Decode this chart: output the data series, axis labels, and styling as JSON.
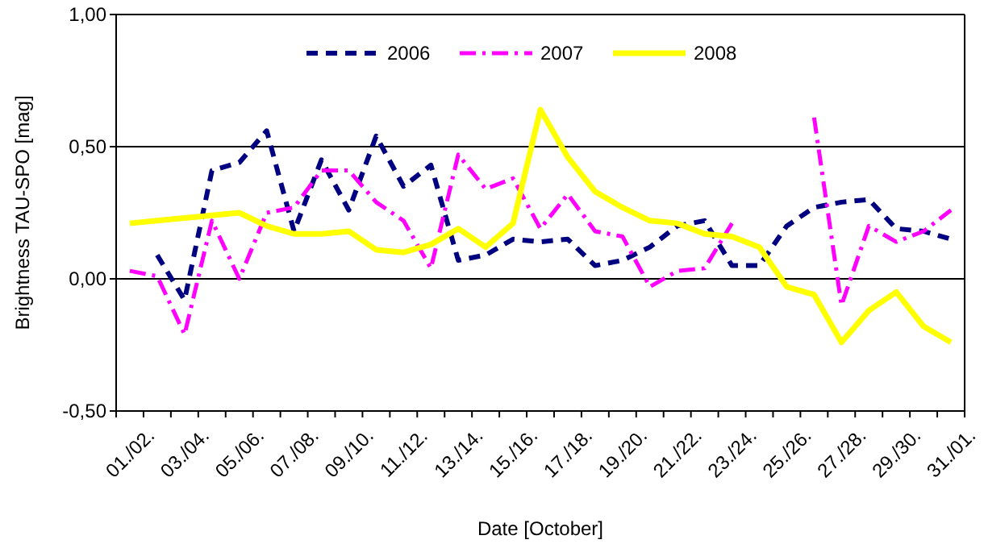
{
  "chart_data": {
    "type": "line",
    "xlabel": "Date [October]",
    "ylabel": "Brightness TAU-SPO [mag]",
    "categories": [
      "01./02.",
      null,
      "03./04.",
      null,
      "05./06.",
      null,
      "07./08.",
      null,
      "09./10.",
      null,
      "11./12.",
      null,
      "13./14.",
      null,
      "15./16.",
      null,
      "17./18.",
      null,
      "19./20.",
      null,
      "21./22.",
      null,
      "23./24.",
      null,
      "25./26.",
      null,
      "27./28.",
      null,
      "29./30.",
      null,
      "31./01."
    ],
    "series": [
      {
        "name": "2006",
        "color": "#000080",
        "line_style": "dashed",
        "values": [
          null,
          0.09,
          -0.08,
          0.41,
          0.44,
          0.56,
          0.18,
          0.45,
          0.26,
          0.54,
          0.35,
          0.43,
          0.07,
          0.09,
          0.15,
          0.14,
          0.15,
          0.05,
          0.07,
          0.12,
          0.2,
          0.22,
          0.05,
          0.05,
          0.2,
          0.27,
          0.29,
          0.3,
          0.19,
          0.18,
          0.15
        ]
      },
      {
        "name": "2007",
        "color": "#ff00ff",
        "line_style": "dashdot",
        "values": [
          0.03,
          0.01,
          -0.21,
          0.22,
          0.0,
          0.25,
          0.27,
          0.41,
          0.41,
          0.29,
          0.22,
          0.04,
          0.47,
          0.34,
          0.38,
          0.19,
          0.32,
          0.18,
          0.16,
          -0.03,
          0.03,
          0.04,
          0.21,
          null,
          null,
          0.61,
          -0.1,
          0.2,
          0.14,
          0.18,
          0.26
        ]
      },
      {
        "name": "2008",
        "color": "#ffff00",
        "line_style": "solid",
        "values": [
          0.21,
          0.22,
          0.23,
          0.24,
          0.25,
          0.2,
          0.17,
          0.17,
          0.18,
          0.11,
          0.1,
          0.13,
          0.19,
          0.12,
          0.21,
          0.64,
          0.46,
          0.33,
          0.27,
          0.22,
          0.21,
          0.17,
          0.16,
          0.12,
          -0.03,
          -0.06,
          -0.24,
          -0.12,
          -0.05,
          -0.18,
          -0.24
        ]
      }
    ],
    "ylim": [
      -0.5,
      1
    ],
    "yticks": [
      {
        "value": -0.5,
        "label": "-0,50"
      },
      {
        "value": 0,
        "label": "0,00"
      },
      {
        "value": 0.5,
        "label": "0,50"
      },
      {
        "value": 1,
        "label": "1,00"
      }
    ],
    "grid": "y",
    "legend": "top",
    "marker": "none"
  }
}
